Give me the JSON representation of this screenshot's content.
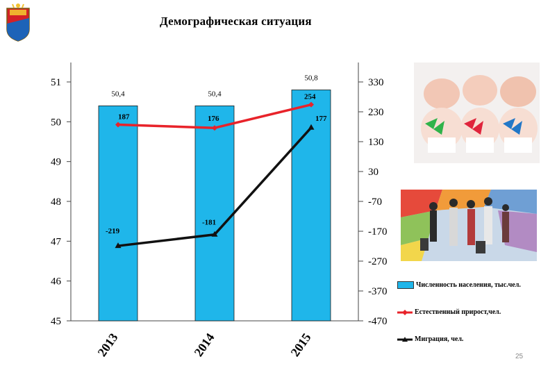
{
  "slide": {
    "title": "Демографическая ситуация",
    "page_number": "25"
  },
  "chart_data": {
    "type": "bar",
    "categories": [
      "2013",
      "2014",
      "2015"
    ],
    "series": [
      {
        "name": "Численность населения, тыс.чел.",
        "type": "bar",
        "axis": "left",
        "values": [
          50.4,
          50.4,
          50.8
        ],
        "labels": [
          "50,4",
          "50,4",
          "50,8"
        ],
        "color": "#1fb6ea"
      },
      {
        "name": "Естественный прирост,чел.",
        "type": "line",
        "axis": "right",
        "values": [
          187,
          176,
          254
        ],
        "labels": [
          "187",
          "176",
          "254"
        ],
        "color": "#e8232a"
      },
      {
        "name": "Миграция, чел.",
        "type": "line",
        "axis": "right",
        "values": [
          -219,
          -181,
          177
        ],
        "labels": [
          "-219",
          "-181",
          "177"
        ],
        "color": "#111111"
      }
    ],
    "left_axis": {
      "ylim": [
        45,
        51
      ],
      "ticks": [
        "45",
        "46",
        "47",
        "48",
        "49",
        "50",
        "51"
      ]
    },
    "right_axis": {
      "ylim": [
        -470,
        330
      ],
      "ticks": [
        "-470",
        "-370",
        "-270",
        "-170",
        "-70",
        "30",
        "130",
        "230",
        "330"
      ]
    },
    "grid": false,
    "legend_position": "right"
  }
}
